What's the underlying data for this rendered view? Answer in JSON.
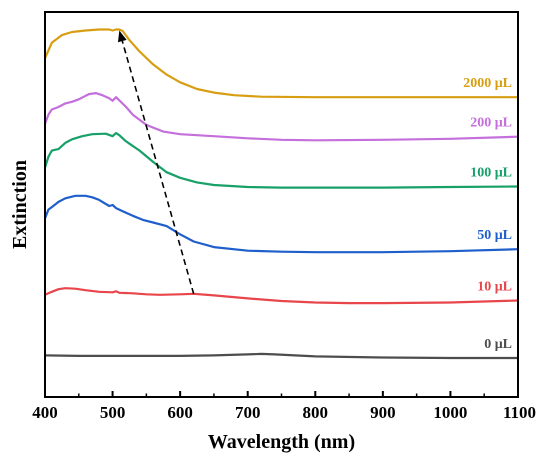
{
  "chart_data": {
    "type": "line",
    "xlabel": "Wavelength (nm)",
    "ylabel": "Extinction",
    "xlim": [
      400,
      1100
    ],
    "xticks": [
      "400",
      "500",
      "600",
      "700",
      "800",
      "900",
      "1000",
      "1100"
    ],
    "yticks_shown": false,
    "grid": false,
    "legend": "inline labels at right end of each curve",
    "units": "Extinction in arbitrary units, curves vertically offset",
    "series": [
      {
        "name": "2000 μL",
        "color": "#D89E12",
        "points": [
          [
            400,
            0.84
          ],
          [
            405,
            0.855
          ],
          [
            410,
            0.87
          ],
          [
            415,
            0.875
          ],
          [
            425,
            0.885
          ],
          [
            440,
            0.891
          ],
          [
            460,
            0.894
          ],
          [
            480,
            0.896
          ],
          [
            495,
            0.896
          ],
          [
            500,
            0.894
          ],
          [
            505,
            0.896
          ],
          [
            510,
            0.896
          ],
          [
            515,
            0.893
          ],
          [
            525,
            0.875
          ],
          [
            540,
            0.853
          ],
          [
            560,
            0.828
          ],
          [
            580,
            0.808
          ],
          [
            600,
            0.793
          ],
          [
            625,
            0.78
          ],
          [
            650,
            0.773
          ],
          [
            680,
            0.768
          ],
          [
            720,
            0.765
          ],
          [
            800,
            0.764
          ],
          [
            900,
            0.764
          ],
          [
            1000,
            0.764
          ],
          [
            1100,
            0.764
          ]
        ]
      },
      {
        "name": "200 μL",
        "color": "#C46FDC",
        "points": [
          [
            400,
            0.712
          ],
          [
            405,
            0.73
          ],
          [
            410,
            0.74
          ],
          [
            420,
            0.745
          ],
          [
            430,
            0.752
          ],
          [
            440,
            0.755
          ],
          [
            450,
            0.76
          ],
          [
            465,
            0.77
          ],
          [
            475,
            0.772
          ],
          [
            485,
            0.768
          ],
          [
            495,
            0.762
          ],
          [
            500,
            0.757
          ],
          [
            505,
            0.764
          ],
          [
            510,
            0.758
          ],
          [
            520,
            0.745
          ],
          [
            530,
            0.73
          ],
          [
            550,
            0.71
          ],
          [
            575,
            0.697
          ],
          [
            600,
            0.692
          ],
          [
            650,
            0.688
          ],
          [
            700,
            0.684
          ],
          [
            750,
            0.681
          ],
          [
            800,
            0.68
          ],
          [
            900,
            0.681
          ],
          [
            1000,
            0.683
          ],
          [
            1100,
            0.687
          ]
        ]
      },
      {
        "name": "100 μL",
        "color": "#17A068",
        "points": [
          [
            400,
            0.627
          ],
          [
            405,
            0.648
          ],
          [
            410,
            0.66
          ],
          [
            420,
            0.663
          ],
          [
            430,
            0.675
          ],
          [
            440,
            0.682
          ],
          [
            455,
            0.688
          ],
          [
            470,
            0.692
          ],
          [
            490,
            0.693
          ],
          [
            500,
            0.688
          ],
          [
            505,
            0.694
          ],
          [
            510,
            0.69
          ],
          [
            520,
            0.678
          ],
          [
            540,
            0.66
          ],
          [
            560,
            0.638
          ],
          [
            580,
            0.618
          ],
          [
            600,
            0.607
          ],
          [
            625,
            0.598
          ],
          [
            650,
            0.593
          ],
          [
            700,
            0.589
          ],
          [
            750,
            0.588
          ],
          [
            800,
            0.588
          ],
          [
            900,
            0.588
          ],
          [
            1000,
            0.589
          ],
          [
            1100,
            0.59
          ]
        ]
      },
      {
        "name": "50 μL",
        "color": "#1F5FCC",
        "points": [
          [
            400,
            0.528
          ],
          [
            405,
            0.545
          ],
          [
            410,
            0.55
          ],
          [
            420,
            0.56
          ],
          [
            430,
            0.567
          ],
          [
            445,
            0.572
          ],
          [
            460,
            0.572
          ],
          [
            470,
            0.569
          ],
          [
            480,
            0.564
          ],
          [
            495,
            0.552
          ],
          [
            500,
            0.554
          ],
          [
            505,
            0.548
          ],
          [
            515,
            0.542
          ],
          [
            530,
            0.533
          ],
          [
            545,
            0.525
          ],
          [
            560,
            0.52
          ],
          [
            580,
            0.513
          ],
          [
            600,
            0.497
          ],
          [
            620,
            0.483
          ],
          [
            650,
            0.472
          ],
          [
            700,
            0.465
          ],
          [
            750,
            0.463
          ],
          [
            800,
            0.462
          ],
          [
            900,
            0.462
          ],
          [
            1000,
            0.464
          ],
          [
            1100,
            0.468
          ]
        ]
      },
      {
        "name": "10 μL",
        "color": "#E8464B",
        "points": [
          [
            400,
            0.379
          ],
          [
            410,
            0.385
          ],
          [
            420,
            0.39
          ],
          [
            430,
            0.392
          ],
          [
            445,
            0.391
          ],
          [
            460,
            0.388
          ],
          [
            480,
            0.385
          ],
          [
            500,
            0.384
          ],
          [
            505,
            0.386
          ],
          [
            510,
            0.383
          ],
          [
            530,
            0.382
          ],
          [
            550,
            0.38
          ],
          [
            570,
            0.379
          ],
          [
            600,
            0.38
          ],
          [
            620,
            0.381
          ],
          [
            650,
            0.378
          ],
          [
            700,
            0.372
          ],
          [
            750,
            0.367
          ],
          [
            800,
            0.364
          ],
          [
            850,
            0.363
          ],
          [
            900,
            0.363
          ],
          [
            1000,
            0.364
          ],
          [
            1100,
            0.368
          ]
        ]
      },
      {
        "name": "0 μL",
        "color": "#4D4D4D",
        "points": [
          [
            400,
            0.261
          ],
          [
            450,
            0.26
          ],
          [
            500,
            0.26
          ],
          [
            550,
            0.26
          ],
          [
            600,
            0.26
          ],
          [
            650,
            0.261
          ],
          [
            700,
            0.263
          ],
          [
            720,
            0.264
          ],
          [
            740,
            0.263
          ],
          [
            800,
            0.259
          ],
          [
            900,
            0.257
          ],
          [
            1000,
            0.256
          ],
          [
            1100,
            0.256
          ]
        ]
      }
    ],
    "arrow": {
      "from": [
        620,
        0.381
      ],
      "to": [
        510,
        0.894
      ],
      "style": "dashed"
    }
  }
}
